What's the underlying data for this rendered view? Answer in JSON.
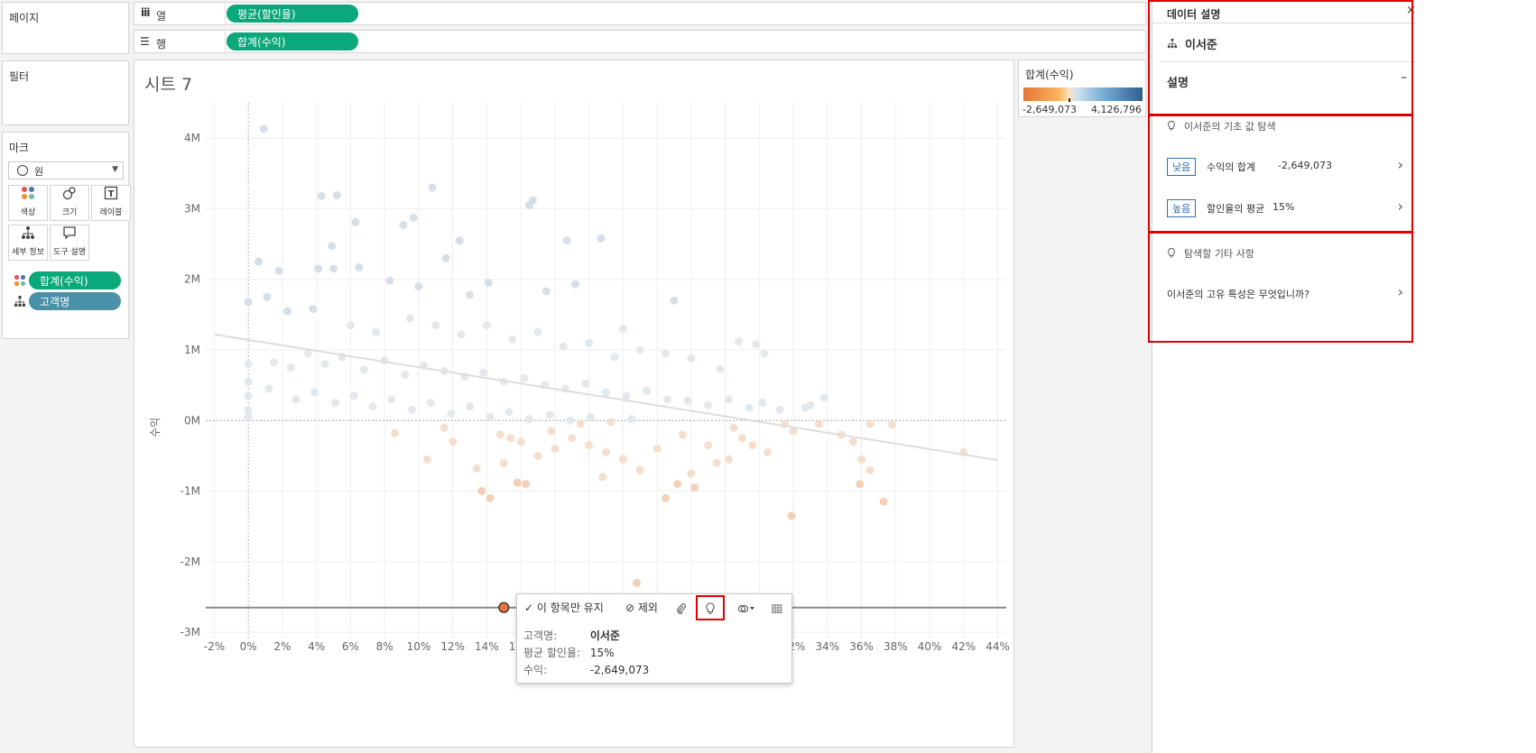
{
  "shelves": {
    "pages_label": "페이지",
    "columns_label": "열",
    "columns_pill": "평균(할인율)",
    "rows_label": "행",
    "rows_pill": "합계(수익)"
  },
  "filters": {
    "label": "필터"
  },
  "marks": {
    "label": "마크",
    "type": "원",
    "buttons": [
      {
        "label": "색상",
        "icon": "color-icon"
      },
      {
        "label": "크기",
        "icon": "size-icon"
      },
      {
        "label": "레이블",
        "icon": "label-icon"
      },
      {
        "label": "세부 정보",
        "icon": "detail-icon"
      },
      {
        "label": "도구 설명",
        "icon": "tooltip-icon"
      }
    ],
    "fields": [
      {
        "label": "합계(수익)",
        "icon": "color-icon"
      },
      {
        "label": "고객명",
        "icon": "detail-icon"
      }
    ]
  },
  "sheet": {
    "title": "시트 7",
    "y_axis_label": "수익"
  },
  "legend": {
    "title": "합계(수익)",
    "min": "-2,649,073",
    "max": "4,126,796"
  },
  "chart_data": {
    "type": "scatter",
    "xlabel": "",
    "ylabel": "수익",
    "xlim": [
      -2.5,
      44.5
    ],
    "ylim": [
      -3.1,
      4.5
    ],
    "x_ticks": [
      "-2%",
      "0%",
      "2%",
      "4%",
      "6%",
      "8%",
      "10%",
      "12%",
      "14%",
      "16%",
      "18%",
      "20%",
      "22%",
      "24%",
      "26%",
      "28%",
      "30%",
      "32%",
      "34%",
      "36%",
      "38%",
      "40%",
      "42%",
      "44%"
    ],
    "y_ticks": [
      "4M",
      "3M",
      "2M",
      "1M",
      "0M",
      "-1M",
      "-2M",
      "-3M"
    ],
    "y_tick_values": [
      4,
      3,
      2,
      1,
      0,
      -1,
      -2,
      -3
    ],
    "trend_line": {
      "x": [
        -2,
        44
      ],
      "y": [
        1.22,
        -0.56
      ]
    },
    "reference_line_y": -2.649073,
    "selected_point": {
      "x": 15,
      "y": -2.649073
    },
    "points": [
      [
        0.9,
        4.13
      ],
      [
        10.8,
        3.3
      ],
      [
        4.3,
        3.18
      ],
      [
        5.2,
        3.19
      ],
      [
        16.7,
        3.12
      ],
      [
        16.5,
        3.05
      ],
      [
        9.7,
        2.87
      ],
      [
        20.7,
        2.58
      ],
      [
        18.7,
        2.55
      ],
      [
        9.1,
        2.77
      ],
      [
        6.3,
        2.81
      ],
      [
        12.4,
        2.55
      ],
      [
        4.9,
        2.47
      ],
      [
        11.6,
        2.3
      ],
      [
        14.1,
        1.95
      ],
      [
        19.2,
        1.93
      ],
      [
        0.6,
        2.25
      ],
      [
        0.0,
        1.68
      ],
      [
        1.1,
        1.75
      ],
      [
        1.8,
        2.12
      ],
      [
        4.1,
        2.15
      ],
      [
        5.0,
        2.15
      ],
      [
        6.5,
        2.17
      ],
      [
        8.3,
        1.98
      ],
      [
        10.0,
        1.9
      ],
      [
        13.0,
        1.78
      ],
      [
        17.5,
        1.83
      ],
      [
        22.0,
        1.3
      ],
      [
        25.0,
        1.7
      ],
      [
        28.8,
        1.12
      ],
      [
        29.8,
        1.08
      ],
      [
        30.3,
        0.95
      ],
      [
        27.7,
        0.73
      ],
      [
        2.3,
        1.55
      ],
      [
        3.8,
        1.58
      ],
      [
        6.0,
        1.35
      ],
      [
        7.5,
        1.25
      ],
      [
        9.5,
        1.45
      ],
      [
        11.0,
        1.35
      ],
      [
        12.5,
        1.22
      ],
      [
        14.0,
        1.35
      ],
      [
        15.5,
        1.15
      ],
      [
        17.0,
        1.25
      ],
      [
        18.5,
        1.05
      ],
      [
        20.0,
        1.1
      ],
      [
        21.5,
        0.9
      ],
      [
        23.0,
        1.0
      ],
      [
        24.5,
        0.95
      ],
      [
        26.0,
        0.88
      ],
      [
        1.5,
        0.82
      ],
      [
        2.5,
        0.75
      ],
      [
        3.5,
        0.95
      ],
      [
        4.5,
        0.8
      ],
      [
        5.5,
        0.9
      ],
      [
        6.8,
        0.72
      ],
      [
        8.0,
        0.85
      ],
      [
        9.2,
        0.65
      ],
      [
        10.3,
        0.78
      ],
      [
        11.5,
        0.7
      ],
      [
        12.7,
        0.62
      ],
      [
        13.8,
        0.68
      ],
      [
        15.0,
        0.55
      ],
      [
        16.2,
        0.6
      ],
      [
        17.4,
        0.5
      ],
      [
        18.6,
        0.45
      ],
      [
        19.8,
        0.52
      ],
      [
        21.0,
        0.4
      ],
      [
        22.2,
        0.35
      ],
      [
        23.4,
        0.42
      ],
      [
        24.6,
        0.3
      ],
      [
        25.8,
        0.28
      ],
      [
        27.0,
        0.22
      ],
      [
        28.2,
        0.3
      ],
      [
        29.4,
        0.18
      ],
      [
        0.0,
        0.8
      ],
      [
        0.0,
        0.55
      ],
      [
        0.0,
        0.35
      ],
      [
        0.0,
        0.15
      ],
      [
        0.0,
        0.05
      ],
      [
        1.2,
        0.45
      ],
      [
        2.8,
        0.3
      ],
      [
        3.9,
        0.4
      ],
      [
        5.1,
        0.25
      ],
      [
        6.2,
        0.35
      ],
      [
        7.3,
        0.2
      ],
      [
        8.4,
        0.3
      ],
      [
        9.6,
        0.15
      ],
      [
        10.7,
        0.25
      ],
      [
        11.9,
        0.1
      ],
      [
        13.0,
        0.2
      ],
      [
        14.2,
        0.05
      ],
      [
        15.3,
        0.12
      ],
      [
        16.5,
        0.02
      ],
      [
        17.7,
        0.08
      ],
      [
        18.9,
        0.0
      ],
      [
        20.1,
        0.05
      ],
      [
        21.3,
        -0.02
      ],
      [
        22.5,
        0.02
      ],
      [
        30.2,
        0.25
      ],
      [
        31.2,
        0.15
      ],
      [
        33.0,
        0.22
      ],
      [
        33.8,
        0.32
      ],
      [
        32.7,
        0.18
      ],
      [
        36.5,
        -0.05
      ],
      [
        37.8,
        -0.06
      ],
      [
        31.5,
        -0.05
      ],
      [
        32.0,
        -0.15
      ],
      [
        33.5,
        -0.05
      ],
      [
        34.8,
        -0.2
      ],
      [
        35.5,
        -0.3
      ],
      [
        36.0,
        -0.55
      ],
      [
        35.9,
        -0.9
      ],
      [
        36.5,
        -0.7
      ],
      [
        37.3,
        -1.15
      ],
      [
        42.0,
        -0.45
      ],
      [
        31.9,
        -1.35
      ],
      [
        28.2,
        -0.55
      ],
      [
        27.5,
        -0.6
      ],
      [
        26.0,
        -0.75
      ],
      [
        25.2,
        -0.9
      ],
      [
        24.5,
        -1.1
      ],
      [
        23.0,
        -0.7
      ],
      [
        22.0,
        -0.55
      ],
      [
        21.0,
        -0.45
      ],
      [
        20.0,
        -0.35
      ],
      [
        19.0,
        -0.25
      ],
      [
        18.0,
        -0.4
      ],
      [
        17.0,
        -0.5
      ],
      [
        16.0,
        -0.3
      ],
      [
        15.0,
        -0.6
      ],
      [
        14.2,
        -1.1
      ],
      [
        13.7,
        -1.0
      ],
      [
        15.8,
        -0.88
      ],
      [
        16.3,
        -0.9
      ],
      [
        13.4,
        -0.68
      ],
      [
        14.8,
        -0.2
      ],
      [
        15.4,
        -0.25
      ],
      [
        10.5,
        -0.55
      ],
      [
        8.6,
        -0.18
      ],
      [
        20.8,
        -0.8
      ],
      [
        26.2,
        -0.95
      ],
      [
        27.0,
        -0.35
      ],
      [
        29.0,
        -0.25
      ],
      [
        30.5,
        -0.45
      ],
      [
        22.8,
        -2.3
      ],
      [
        11.5,
        -0.1
      ],
      [
        12.0,
        -0.3
      ],
      [
        17.8,
        -0.15
      ],
      [
        19.5,
        -0.05
      ],
      [
        24.0,
        -0.4
      ],
      [
        25.5,
        -0.2
      ],
      [
        28.5,
        -0.1
      ],
      [
        29.6,
        -0.35
      ]
    ]
  },
  "tooltip_toolbar": {
    "keep_only": "이 항목만 유지",
    "exclude": "제외"
  },
  "tooltip": {
    "rows": [
      {
        "key": "고객명:",
        "value": "이서준"
      },
      {
        "key": "평균 할인율:",
        "value": "15%"
      },
      {
        "key": "수익:",
        "value": "-2,649,073"
      }
    ]
  },
  "explain": {
    "panel_title": "데이터 설명",
    "entity": "이서준",
    "section_label": "설명",
    "basic_header": "이서준의 기초 값 탐색",
    "items": [
      {
        "tag": "낮음",
        "label": "수익의 합계",
        "value": "-2,649,073"
      },
      {
        "tag": "높음",
        "label": "할인율의 평균",
        "value": "15%"
      }
    ],
    "other_header": "탐색할 기타 사항",
    "question": "이서준의 고유 특성은 무엇입니까?"
  },
  "colors": {
    "pill_green": "#0aa87a",
    "pill_teal": "#4a90a8",
    "highlight_red": "#e00000",
    "negative_orange": "#e6743a",
    "positive_blue": "#2f5f8f"
  }
}
